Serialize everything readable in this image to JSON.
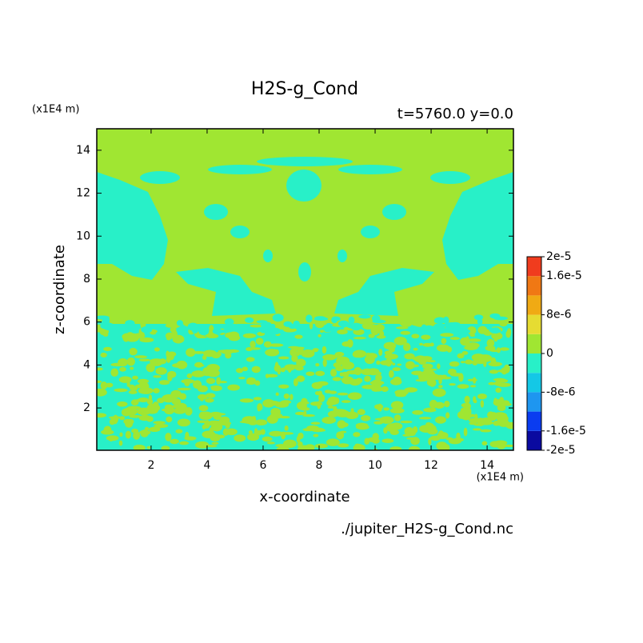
{
  "chart_data": {
    "type": "contour",
    "title": "H2S-g_Cond",
    "subtitle": "t=5760.0 y=0.0",
    "x_label": "x-coordinate",
    "y_label": "z-coordinate",
    "x_unit": "(x1E4 m)",
    "y_unit": "(x1E4 m)",
    "source": "./jupiter_H2S-g_Cond.nc",
    "xlim": [
      0.06,
      14.94
    ],
    "ylim": [
      0.03,
      15
    ],
    "xticks": [
      2,
      4,
      6,
      8,
      10,
      12,
      14
    ],
    "yticks": [
      2,
      4,
      6,
      8,
      10,
      12,
      14
    ],
    "levels": [
      -2e-05,
      -1.6e-05,
      -1.2e-05,
      -8e-06,
      -4e-06,
      0,
      4e-06,
      8e-06,
      1.2e-05,
      1.6e-05,
      2e-05
    ],
    "colors": [
      "#0a0aa0",
      "#0a3cf0",
      "#1e96f0",
      "#14c8e6",
      "#28f0c8",
      "#a0e632",
      "#e6dc32",
      "#f0aa14",
      "#f07814",
      "#f03c1e"
    ],
    "cbar_ticks": [
      {
        "value": 2e-05,
        "label": "2e-5"
      },
      {
        "value": 1.6e-05,
        "label": "1.6e-5"
      },
      {
        "value": 8e-06,
        "label": "8e-6"
      },
      0,
      {
        "value": -8e-06,
        "label": "-8e-6"
      },
      {
        "value": -1.6e-05,
        "label": "-1.6e-5"
      },
      {
        "value": -2e-05,
        "label": "-2e-5"
      }
    ]
  }
}
